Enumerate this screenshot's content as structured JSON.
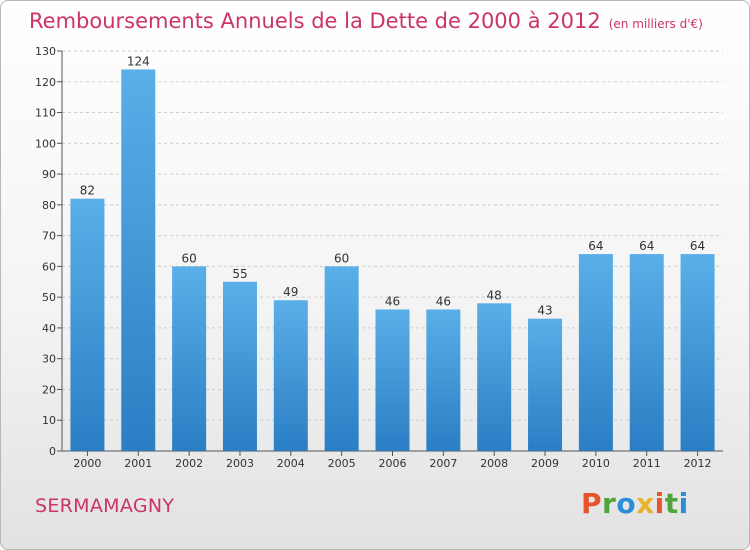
{
  "header": {
    "title": "Remboursements Annuels de la Dette de 2000 à 2012",
    "subtitle": "(en milliers d'€)"
  },
  "footer": {
    "commune": "SERMAMAGNY",
    "logo_text": "Proxiti",
    "logo_colors": [
      "#e8542a",
      "#4fa53c",
      "#2a8fd8",
      "#e8b22a",
      "#e8542a",
      "#4fa53c",
      "#2a8fd8"
    ]
  },
  "chart_data": {
    "type": "bar",
    "categories": [
      "2000",
      "2001",
      "2002",
      "2003",
      "2004",
      "2005",
      "2006",
      "2007",
      "2008",
      "2009",
      "2010",
      "2011",
      "2012"
    ],
    "values": [
      82,
      124,
      60,
      55,
      49,
      60,
      46,
      46,
      48,
      43,
      64,
      64,
      64
    ],
    "ylim": [
      0,
      130
    ],
    "yticks": [
      0,
      10,
      20,
      30,
      40,
      50,
      60,
      70,
      80,
      90,
      100,
      110,
      120,
      130
    ],
    "grid": true,
    "bar_color_top": "#5aafe8",
    "bar_color_bottom": "#2a7ec4"
  }
}
